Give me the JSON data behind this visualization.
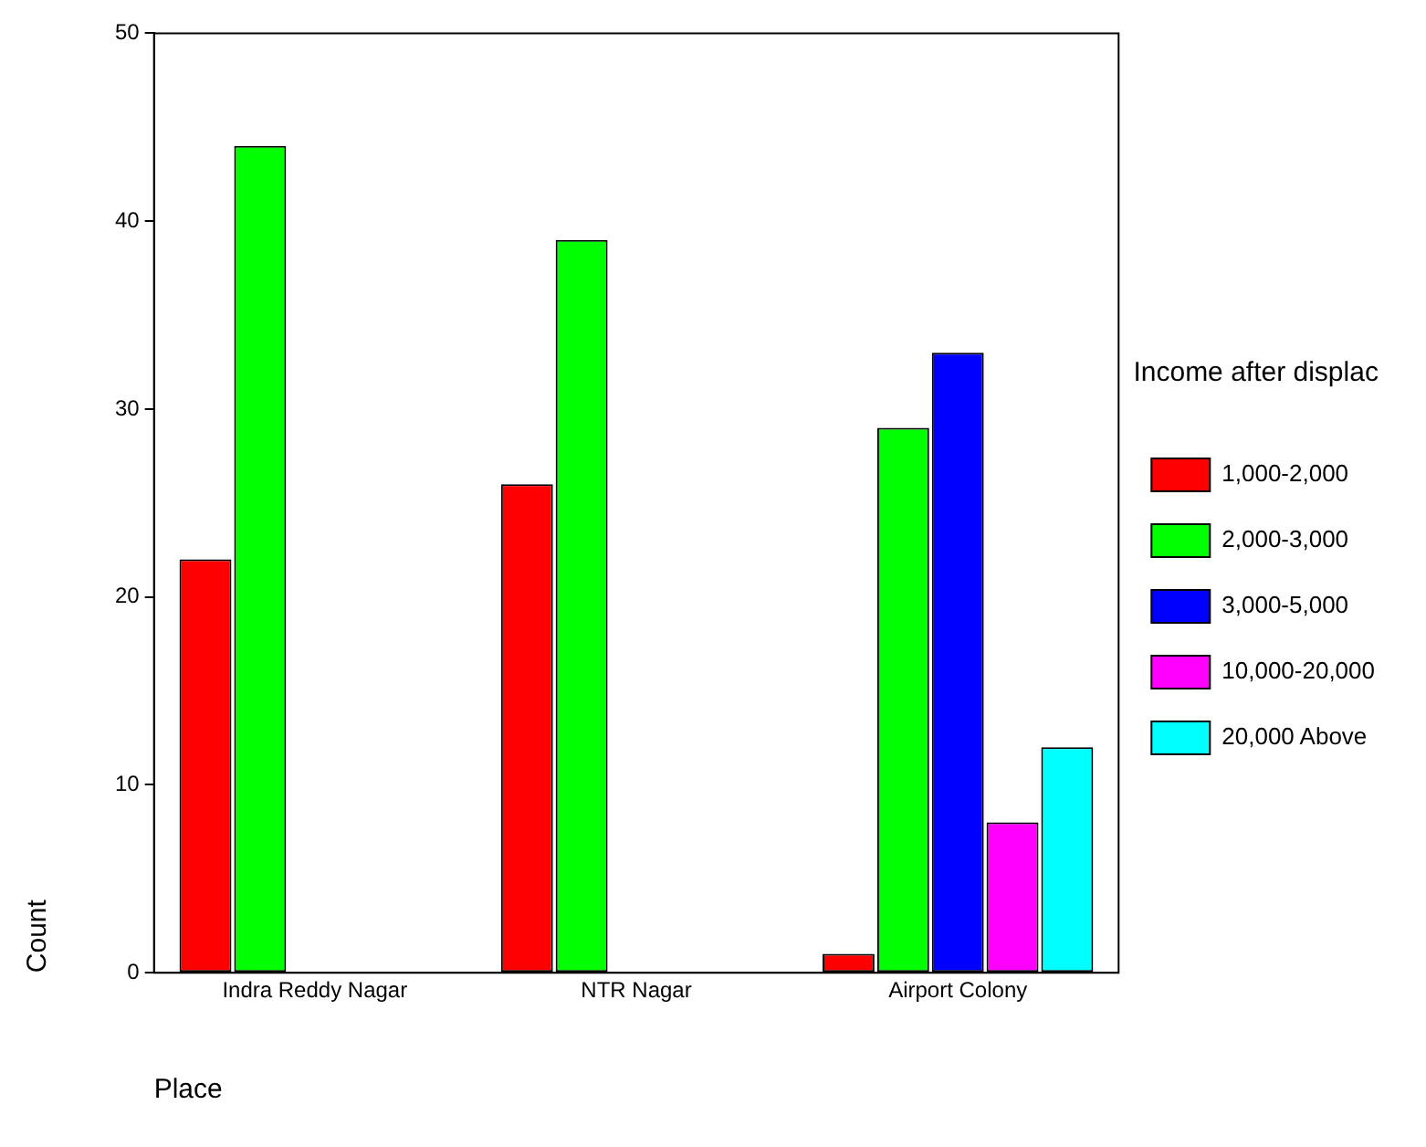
{
  "chart_data": {
    "type": "bar",
    "xlabel": "Place",
    "ylabel": "Count",
    "legend_title": "Income after displac",
    "categories": [
      "Indra Reddy Nagar",
      "NTR Nagar",
      "Airport Colony"
    ],
    "series": [
      {
        "name": "1,000-2,000",
        "color": "#ff0000",
        "values": [
          22,
          26,
          1
        ]
      },
      {
        "name": "2,000-3,000",
        "color": "#00ff00",
        "values": [
          44,
          39,
          29
        ]
      },
      {
        "name": "3,000-5,000",
        "color": "#0000ff",
        "values": [
          null,
          null,
          33
        ]
      },
      {
        "name": "10,000-20,000",
        "color": "#ff00ff",
        "values": [
          null,
          null,
          8
        ]
      },
      {
        "name": "20,000 Above",
        "color": "#00ffff",
        "values": [
          null,
          null,
          12
        ]
      }
    ],
    "ylim": [
      0,
      50
    ],
    "yticks": [
      0,
      10,
      20,
      30,
      40,
      50
    ],
    "grid": false,
    "legend": "right"
  }
}
